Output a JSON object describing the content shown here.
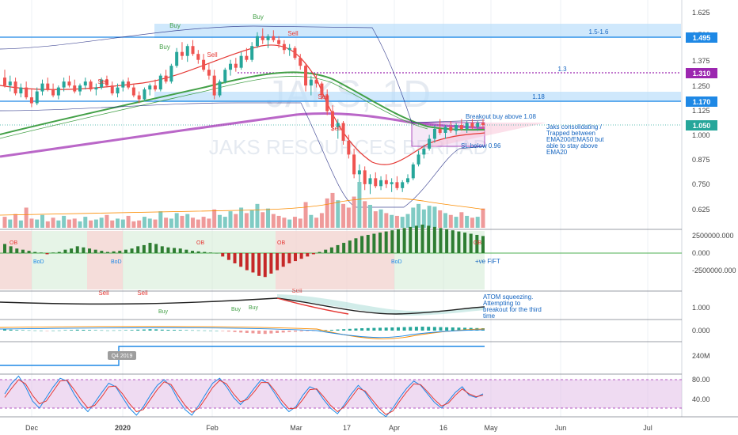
{
  "chart_data": {
    "type": "candlestick",
    "watermark": {
      "symbol": "JAKS, 1D",
      "name": "JAKS RESOURCES BERHAD"
    },
    "x_axis": {
      "labels": [
        "Dec",
        "2020",
        "Feb",
        "Mar",
        "17",
        "Apr",
        "16",
        "May",
        "Jun",
        "Jul"
      ]
    },
    "price_axis": {
      "ticks": [
        "1.625",
        "1.500",
        "1.375",
        "1.250",
        "1.125",
        "1.000",
        "0.875",
        "0.750",
        "0.625"
      ]
    },
    "price_tags": [
      {
        "text": "1.495",
        "color": "#1e88e5"
      },
      {
        "text": "1.310",
        "color": "#9c27b0"
      },
      {
        "text": "1.170",
        "color": "#1e88e5"
      },
      {
        "text": "1.050",
        "color": "#26a69a"
      }
    ],
    "zone_labels": [
      "1.5-1.6",
      "1.3",
      "1.18"
    ],
    "signals": [
      "Buy",
      "Buy",
      "Buy",
      "Sell",
      "Sell",
      "Sell",
      "Sell",
      "Sell",
      "Sell",
      "Sell",
      "Sell"
    ],
    "annotations": {
      "breakout": "Breakout buy above 1.08",
      "stop": "SL below 0.96",
      "consolidating": [
        "Jaks consolidating /",
        "Trapped between",
        "EMA200/EMA50 but",
        "able to stay above",
        "EMA20"
      ],
      "fift": "+ve FiFT",
      "atom": [
        "ATOM squeezing.",
        "Attempting to",
        "breakout for the third",
        "time"
      ],
      "q4": "Q4 2019"
    },
    "osc1": {
      "ticks": [
        "2500000.000",
        "0.000",
        "-2500000.000"
      ],
      "labels": [
        "OB",
        "BoD"
      ]
    },
    "atom_panel": {
      "ticks": [
        "1.000"
      ],
      "labels": [
        "Buy",
        "Sell"
      ]
    },
    "macd_panel": {
      "ticks": [
        "0.000"
      ]
    },
    "vol_panel": {
      "ticks": [
        "240M"
      ]
    },
    "stoch_panel": {
      "ticks": [
        "80.00",
        "40.00"
      ],
      "ylim": [
        0,
        100
      ]
    },
    "colors": {
      "up": "#26a69a",
      "down": "#ef5350",
      "zone": "#bbdefb",
      "ema200": "#9c27b0",
      "ema50": "#43a047",
      "ema20": "#e53935",
      "stoch_band": "#e1bee7"
    },
    "candles": [
      [
        1.29,
        1.33,
        1.24,
        1.25
      ],
      [
        1.25,
        1.3,
        1.22,
        1.27
      ],
      [
        1.27,
        1.29,
        1.2,
        1.21
      ],
      [
        1.21,
        1.26,
        1.19,
        1.24
      ],
      [
        1.24,
        1.27,
        1.18,
        1.19
      ],
      [
        1.19,
        1.23,
        1.14,
        1.16
      ],
      [
        1.16,
        1.24,
        1.15,
        1.22
      ],
      [
        1.22,
        1.28,
        1.2,
        1.26
      ],
      [
        1.26,
        1.29,
        1.22,
        1.23
      ],
      [
        1.23,
        1.26,
        1.19,
        1.2
      ],
      [
        1.2,
        1.25,
        1.18,
        1.24
      ],
      [
        1.24,
        1.29,
        1.22,
        1.27
      ],
      [
        1.27,
        1.3,
        1.24,
        1.25
      ],
      [
        1.25,
        1.28,
        1.21,
        1.22
      ],
      [
        1.22,
        1.26,
        1.2,
        1.25
      ],
      [
        1.25,
        1.29,
        1.23,
        1.27
      ],
      [
        1.27,
        1.28,
        1.22,
        1.23
      ],
      [
        1.23,
        1.26,
        1.2,
        1.24
      ],
      [
        1.24,
        1.29,
        1.23,
        1.28
      ],
      [
        1.28,
        1.3,
        1.24,
        1.25
      ],
      [
        1.25,
        1.27,
        1.2,
        1.21
      ],
      [
        1.21,
        1.26,
        1.19,
        1.24
      ],
      [
        1.24,
        1.28,
        1.22,
        1.27
      ],
      [
        1.27,
        1.29,
        1.23,
        1.24
      ],
      [
        1.24,
        1.26,
        1.19,
        1.2
      ],
      [
        1.2,
        1.22,
        1.16,
        1.18
      ],
      [
        1.18,
        1.24,
        1.17,
        1.23
      ],
      [
        1.23,
        1.26,
        1.2,
        1.25
      ],
      [
        1.25,
        1.28,
        1.22,
        1.23
      ],
      [
        1.23,
        1.31,
        1.22,
        1.3
      ],
      [
        1.3,
        1.33,
        1.26,
        1.27
      ],
      [
        1.27,
        1.36,
        1.26,
        1.35
      ],
      [
        1.35,
        1.44,
        1.34,
        1.42
      ],
      [
        1.42,
        1.47,
        1.38,
        1.4
      ],
      [
        1.4,
        1.46,
        1.37,
        1.45
      ],
      [
        1.45,
        1.48,
        1.4,
        1.41
      ],
      [
        1.41,
        1.43,
        1.36,
        1.38
      ],
      [
        1.38,
        1.41,
        1.32,
        1.33
      ],
      [
        1.33,
        1.36,
        1.28,
        1.3
      ],
      [
        1.3,
        1.33,
        1.18,
        1.2
      ],
      [
        1.2,
        1.28,
        1.19,
        1.27
      ],
      [
        1.27,
        1.34,
        1.26,
        1.33
      ],
      [
        1.33,
        1.38,
        1.3,
        1.36
      ],
      [
        1.36,
        1.39,
        1.32,
        1.34
      ],
      [
        1.34,
        1.42,
        1.33,
        1.4
      ],
      [
        1.4,
        1.44,
        1.37,
        1.38
      ],
      [
        1.38,
        1.47,
        1.37,
        1.45
      ],
      [
        1.45,
        1.52,
        1.44,
        1.5
      ],
      [
        1.5,
        1.54,
        1.46,
        1.48
      ],
      [
        1.48,
        1.51,
        1.44,
        1.5
      ],
      [
        1.5,
        1.53,
        1.47,
        1.48
      ],
      [
        1.48,
        1.5,
        1.44,
        1.46
      ],
      [
        1.46,
        1.48,
        1.41,
        1.43
      ],
      [
        1.43,
        1.46,
        1.4,
        1.44
      ],
      [
        1.44,
        1.45,
        1.38,
        1.39
      ],
      [
        1.39,
        1.41,
        1.33,
        1.35
      ],
      [
        1.35,
        1.36,
        1.22,
        1.25
      ],
      [
        1.25,
        1.3,
        1.2,
        1.28
      ],
      [
        1.28,
        1.31,
        1.24,
        1.26
      ],
      [
        1.26,
        1.27,
        1.18,
        1.2
      ],
      [
        1.2,
        1.23,
        1.1,
        1.12
      ],
      [
        1.12,
        1.15,
        1.02,
        1.04
      ],
      [
        1.04,
        1.08,
        0.98,
        1.06
      ],
      [
        1.06,
        1.07,
        0.95,
        0.97
      ],
      [
        0.97,
        1.0,
        0.88,
        0.9
      ],
      [
        0.9,
        0.93,
        0.78,
        0.8
      ],
      [
        0.8,
        0.85,
        0.7,
        0.82
      ],
      [
        0.82,
        0.84,
        0.72,
        0.75
      ],
      [
        0.75,
        0.8,
        0.7,
        0.78
      ],
      [
        0.78,
        0.81,
        0.73,
        0.74
      ],
      [
        0.74,
        0.79,
        0.72,
        0.77
      ],
      [
        0.77,
        0.8,
        0.73,
        0.75
      ],
      [
        0.75,
        0.78,
        0.71,
        0.76
      ],
      [
        0.76,
        0.79,
        0.72,
        0.73
      ],
      [
        0.73,
        0.77,
        0.71,
        0.76
      ],
      [
        0.76,
        0.8,
        0.75,
        0.78
      ],
      [
        0.78,
        0.86,
        0.77,
        0.85
      ],
      [
        0.85,
        0.92,
        0.84,
        0.9
      ],
      [
        0.9,
        0.95,
        0.88,
        0.93
      ],
      [
        0.93,
        1.0,
        0.92,
        0.98
      ],
      [
        0.98,
        1.05,
        0.96,
        1.03
      ],
      [
        1.03,
        1.08,
        1.0,
        1.01
      ],
      [
        1.01,
        1.05,
        0.98,
        1.04
      ],
      [
        1.04,
        1.07,
        1.01,
        1.02
      ],
      [
        1.02,
        1.06,
        1.0,
        1.05
      ],
      [
        1.05,
        1.08,
        1.02,
        1.03
      ],
      [
        1.03,
        1.07,
        1.01,
        1.06
      ],
      [
        1.06,
        1.08,
        1.03,
        1.04
      ],
      [
        1.04,
        1.07,
        1.02,
        1.06
      ],
      [
        1.06,
        1.08,
        1.03,
        1.05
      ]
    ],
    "volume": [
      12,
      9,
      15,
      8,
      22,
      10,
      9,
      14,
      7,
      11,
      8,
      13,
      9,
      10,
      7,
      12,
      8,
      9,
      11,
      14,
      8,
      10,
      9,
      13,
      7,
      8,
      12,
      10,
      9,
      18,
      11,
      10,
      16,
      13,
      15,
      11,
      9,
      12,
      10,
      20,
      14,
      12,
      18,
      15,
      22,
      16,
      19,
      26,
      17,
      21,
      15,
      13,
      11,
      9,
      12,
      10,
      28,
      14,
      11,
      16,
      32,
      38,
      30,
      26,
      22,
      34,
      50,
      29,
      25,
      18,
      20,
      16,
      14,
      13,
      12,
      15,
      22,
      26,
      20,
      24,
      23,
      19,
      16,
      14,
      12,
      17,
      13,
      11,
      12,
      21
    ],
    "oscillator": [
      80,
      60,
      40,
      30,
      20,
      10,
      5,
      -10,
      5,
      10,
      30,
      40,
      60,
      50,
      40,
      30,
      20,
      10,
      15,
      20,
      30,
      40,
      60,
      70,
      90,
      80,
      60,
      50,
      45,
      40,
      30,
      20,
      15,
      10,
      5,
      0,
      -30,
      -60,
      -90,
      -120,
      -150,
      -170,
      -200,
      -210,
      -180,
      -150,
      -120,
      -90,
      -70,
      -50,
      -30,
      -10,
      10,
      30,
      50,
      70,
      90,
      110,
      130,
      150,
      160,
      170,
      180,
      190,
      200,
      210,
      220,
      230,
      240,
      250,
      240,
      230,
      220,
      210,
      200,
      190,
      180,
      170,
      160,
      150
    ],
    "stochastic": [
      [
        60,
        75,
        85,
        70,
        50,
        40,
        55,
        70,
        82,
        78,
        60,
        45,
        35,
        48,
        62,
        75,
        70,
        55,
        40,
        30,
        42,
        58,
        72,
        80,
        70,
        52,
        38,
        30,
        44,
        60,
        75,
        82,
        70,
        55,
        45,
        55,
        68,
        80,
        75,
        60,
        45,
        35,
        42,
        58,
        70,
        66,
        52,
        40,
        32,
        45,
        60,
        72,
        62,
        48,
        35,
        28,
        40,
        55,
        68,
        78,
        72,
        60,
        48,
        40,
        50,
        62,
        70,
        58,
        55,
        60
      ],
      [
        55,
        68,
        80,
        74,
        58,
        46,
        50,
        64,
        78,
        79,
        66,
        52,
        40,
        44,
        56,
        70,
        71,
        60,
        46,
        35,
        38,
        52,
        66,
        77,
        73,
        58,
        44,
        34,
        40,
        54,
        69,
        79,
        74,
        60,
        49,
        52,
        63,
        76,
        76,
        64,
        50,
        39,
        40,
        52,
        66,
        67,
        56,
        44,
        35,
        42,
        55,
        68,
        64,
        52,
        40,
        31,
        36,
        50,
        63,
        74,
        73,
        63,
        52,
        43,
        47,
        58,
        67,
        60,
        56,
        58
      ]
    ]
  }
}
